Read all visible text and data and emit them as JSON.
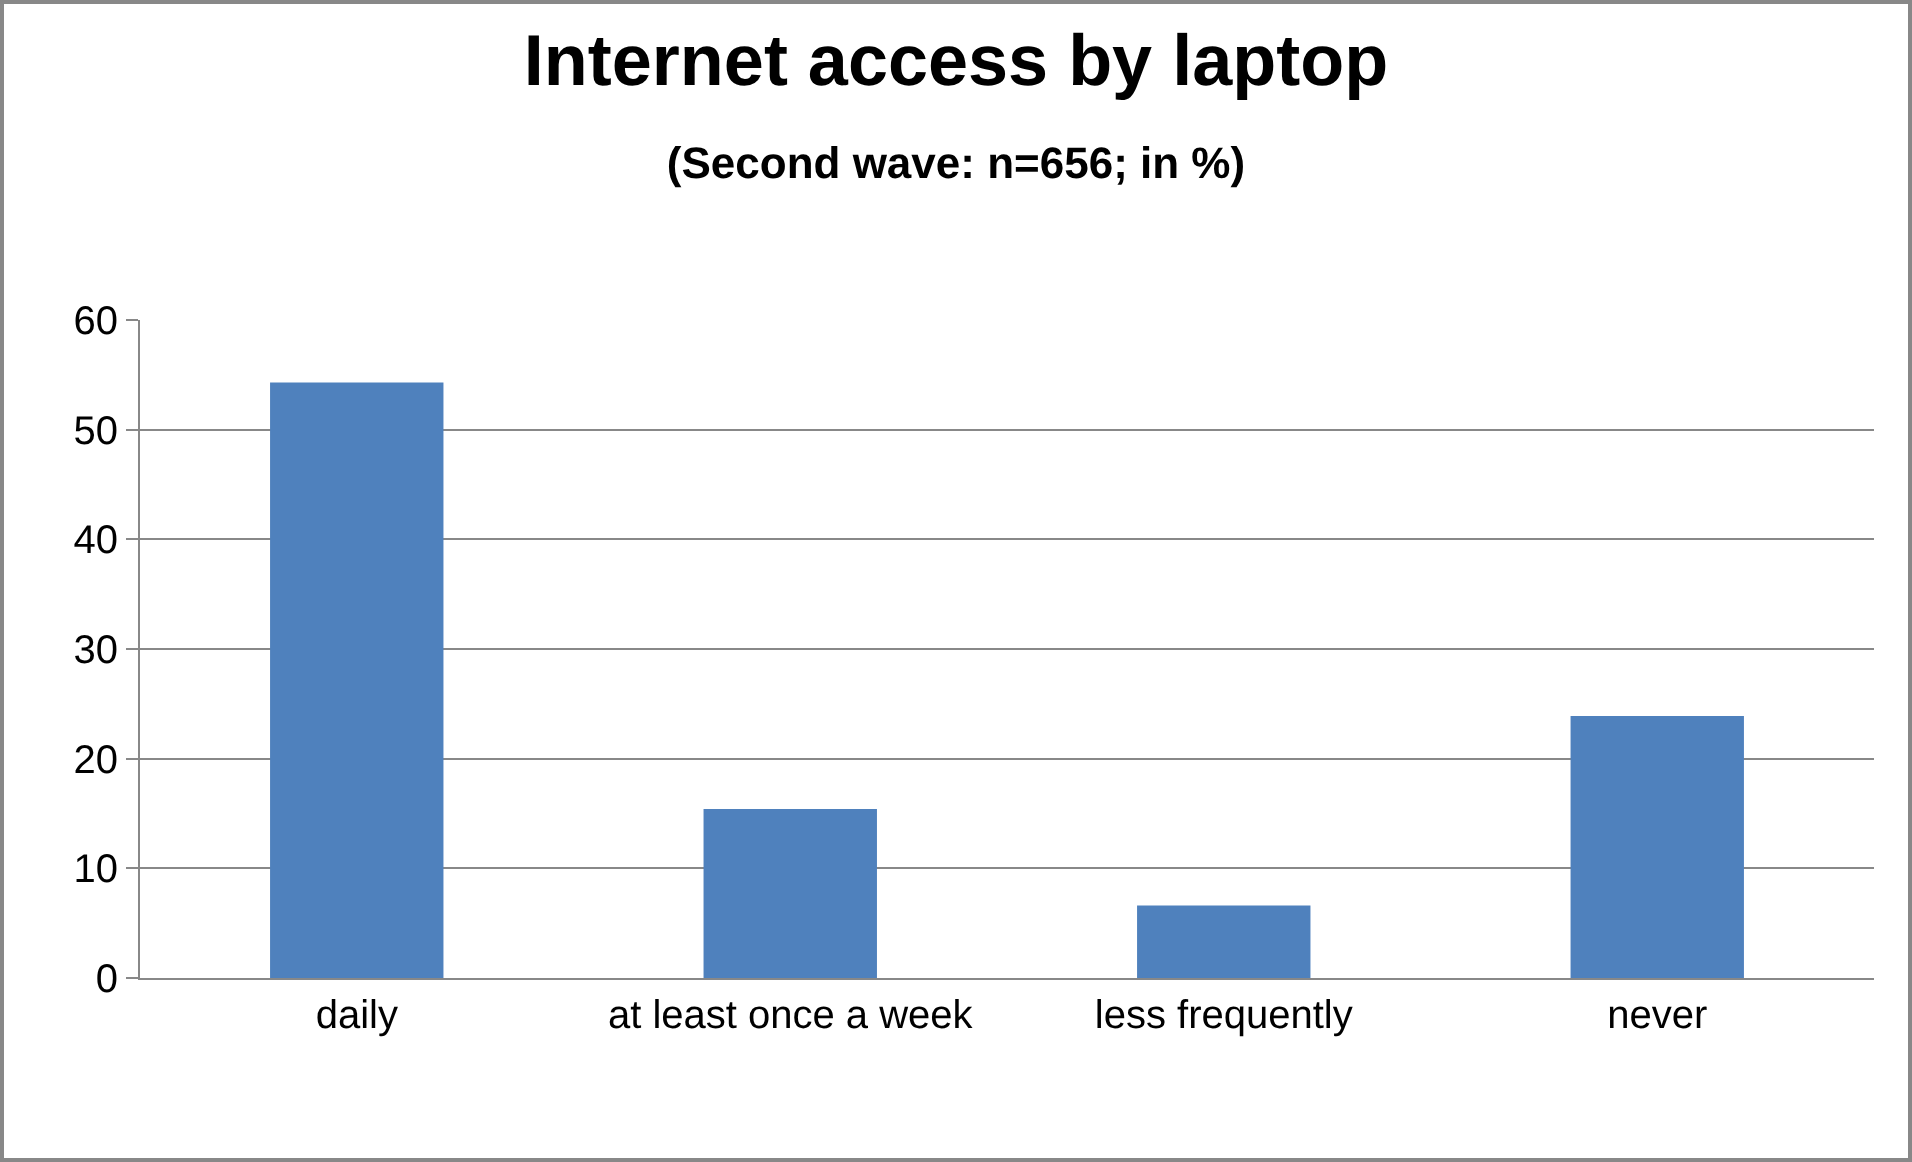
{
  "chart_data": {
    "type": "bar",
    "title": "Internet access by laptop",
    "subtitle": "(Second wave: n=656; in %)",
    "categories": [
      "daily",
      "at least once a week",
      "less frequently",
      "never"
    ],
    "values": [
      54.3,
      15.4,
      6.6,
      23.9
    ],
    "color": "#4f81bd",
    "ylim": [
      0,
      60
    ],
    "yticks": [
      0,
      10,
      20,
      30,
      40,
      50,
      60
    ],
    "grid": "y",
    "legend": false
  }
}
